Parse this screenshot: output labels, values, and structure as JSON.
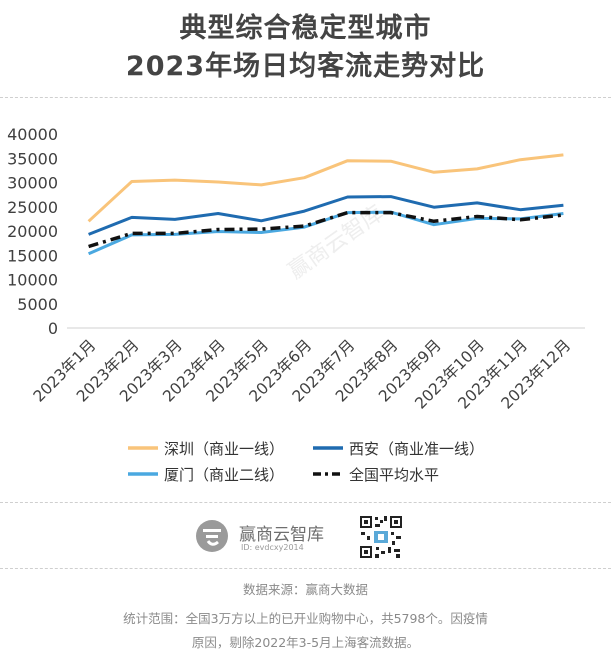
{
  "title_line1": "典型综合稳定型城市",
  "title_line2": "2023年场日均客流走势对比",
  "chart_data": {
    "type": "line",
    "categories": [
      "2023年1月",
      "2023年2月",
      "2023年3月",
      "2023年4月",
      "2023年5月",
      "2023年6月",
      "2023年7月",
      "2023年8月",
      "2023年9月",
      "2023年10月",
      "2023年11月",
      "2023年12月"
    ],
    "ylim": [
      0,
      40000
    ],
    "yticks": [
      0,
      5000,
      10000,
      15000,
      20000,
      25000,
      30000,
      35000,
      40000
    ],
    "series": [
      {
        "name": "深圳（商业一线）",
        "color": "#F9C47A",
        "style": "solid",
        "values": [
          22000,
          30200,
          30500,
          30100,
          29500,
          31000,
          34500,
          34400,
          32100,
          32800,
          34700,
          35700
        ]
      },
      {
        "name": "西安（商业准一线）",
        "color": "#1F6BB0",
        "style": "solid",
        "values": [
          19300,
          22800,
          22400,
          23600,
          22100,
          24100,
          27000,
          27100,
          24900,
          25800,
          24400,
          25300
        ]
      },
      {
        "name": "厦门（商业二线）",
        "color": "#4AA8E0",
        "style": "solid",
        "values": [
          15300,
          19200,
          19300,
          19900,
          19700,
          20800,
          23800,
          23900,
          21300,
          22600,
          22500,
          23600
        ]
      },
      {
        "name": "全国平均水平",
        "color": "#111111",
        "style": "dashdot",
        "values": [
          16800,
          19500,
          19500,
          20300,
          20400,
          21000,
          23800,
          23800,
          22000,
          23000,
          22300,
          23300
        ]
      }
    ],
    "legend_position": "bottom"
  },
  "footer": {
    "brand": "赢商云智库",
    "id_text": "ID: evdcxy2014",
    "source": "数据来源：赢商大数据",
    "scope_line1": "统计范围：全国3万方以上的已开业购物中心，共5798个。因疫情",
    "scope_line2": "原因，剔除2022年3-5月上海客流数据。"
  },
  "watermark": "赢商云智库"
}
